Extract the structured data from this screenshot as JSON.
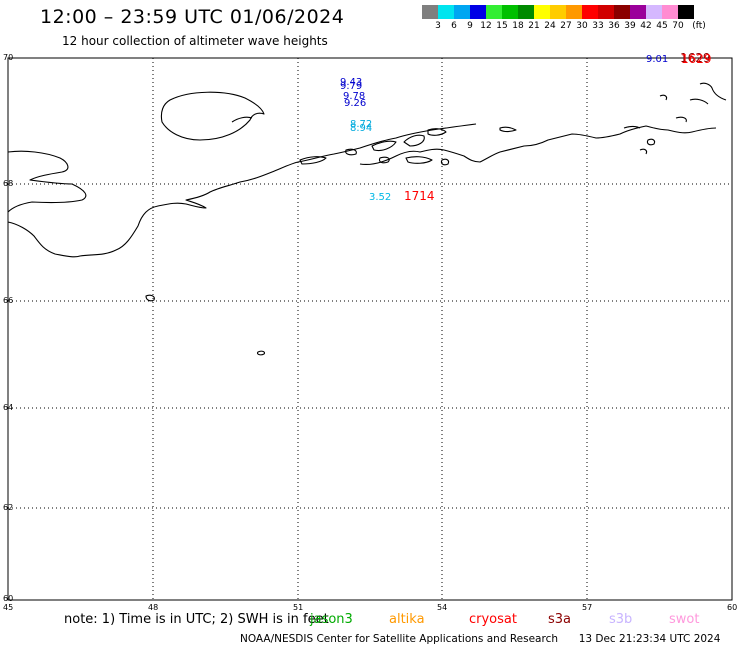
{
  "header": {
    "title": "12:00 – 23:59 UTC 01/06/2024",
    "subtitle": "12 hour collection of altimeter wave heights"
  },
  "legend": {
    "unit": "(ft)",
    "levels": [
      "3",
      "6",
      "9",
      "12",
      "15",
      "18",
      "21",
      "24",
      "27",
      "30",
      "33",
      "36",
      "39",
      "42",
      "45",
      "70"
    ],
    "colors": [
      "#7f7f7f",
      "#00e5ef",
      "#00a6f2",
      "#0000e6",
      "#33ee33",
      "#00c000",
      "#008a00",
      "#ffff00",
      "#ffcc00",
      "#ff9900",
      "#ff0000",
      "#d10000",
      "#8b0000",
      "#9b009b",
      "#d5b8ff",
      "#ff8cd2",
      "#000000"
    ]
  },
  "axes": {
    "lon_labels": [
      "45",
      "48",
      "51",
      "54",
      "57",
      "60"
    ],
    "lat_labels": [
      "70",
      "68",
      "66",
      "64",
      "62",
      "60"
    ]
  },
  "observations": [
    {
      "value": "9.43",
      "color": "#0000cd"
    },
    {
      "value": "9.79",
      "color": "#0000cd"
    },
    {
      "value": "9.78",
      "color": "#0000cd"
    },
    {
      "value": "9.26",
      "color": "#0000cd"
    },
    {
      "value": "8.72",
      "color": "#00aadd"
    },
    {
      "value": "8.94",
      "color": "#00aadd"
    },
    {
      "value": "3.52",
      "color": "#00b8e6"
    },
    {
      "value": "9.01",
      "color": "#0000cd"
    }
  ],
  "pass_ids": [
    {
      "value": "1714",
      "color": "#ff0000"
    },
    {
      "value": "1629",
      "color": "#8b0000"
    },
    {
      "value": "1629",
      "color": "#ff0000"
    }
  ],
  "footer": {
    "note": "note: 1) Time is in UTC; 2) SWH is in feet",
    "satellites": [
      {
        "name": "jason3",
        "color": "#00aa00"
      },
      {
        "name": "altika",
        "color": "#ff9900"
      },
      {
        "name": "cryosat",
        "color": "#ff0000"
      },
      {
        "name": "s3a",
        "color": "#8b0000"
      },
      {
        "name": "s3b",
        "color": "#c8b4ff"
      },
      {
        "name": "swot",
        "color": "#ff99dd"
      }
    ],
    "credit": "NOAA/NESDIS Center for Satellite Applications and Research",
    "timestamp": "13 Dec 21:23:34 UTC 2024"
  }
}
